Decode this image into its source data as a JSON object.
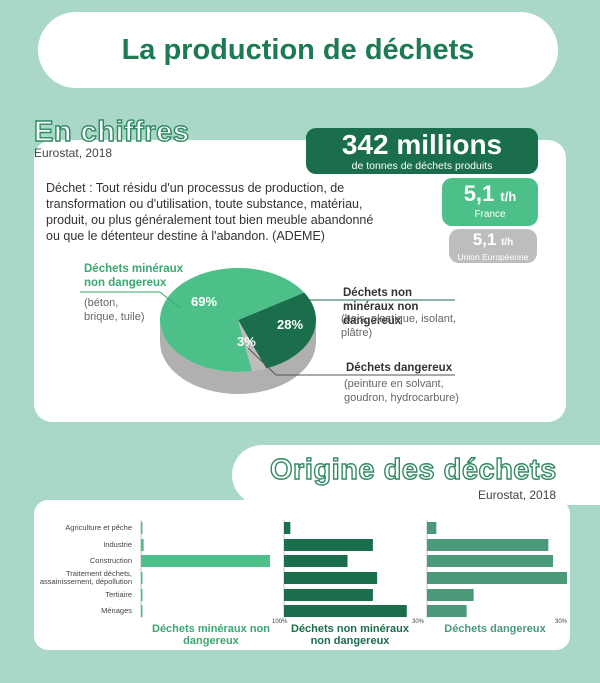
{
  "title": "La production de déchets",
  "section1": {
    "heading": "En chiffres",
    "source": "Eurostat, 2018",
    "total": {
      "value": "342 millions",
      "label": "de tonnes de déchets produits"
    },
    "france": {
      "value": "5,1",
      "unit": "t/h",
      "label": "France"
    },
    "eu": {
      "value": "5,1",
      "unit": "t/h",
      "label": "Union Européenne"
    },
    "definition": "Déchet : Tout résidu d'un processus de production, de transformation ou d'utilisation, toute substance, matériau, produit, ou plus généralement tout bien meuble abandonné ou que le détenteur destine à l'abandon. (ADEME)",
    "pie_labels": {
      "mineral": {
        "name": "Déchets minéraux non dangereux",
        "examples": "(béton, brique, tuile)"
      },
      "nonmineral": {
        "name": "Déchets non minéraux non dangereux",
        "examples": "(bois, plastique, isolant, plâtre)"
      },
      "hazardous": {
        "name": "Déchets dangereux",
        "examples": "(peinture en solvant, goudron, hydrocarbure)"
      }
    }
  },
  "section2": {
    "heading": "Origine des déchets",
    "source": "Eurostat, 2018"
  },
  "colors": {
    "dark": "#1a6e4c",
    "mid": "#4a9a7a",
    "light": "#4cc088",
    "grey": "#bdbdbd"
  },
  "chart_data": [
    {
      "type": "pie",
      "categories": [
        "Déchets minéraux non dangereux",
        "Déchets non minéraux non dangereux",
        "Déchets dangereux"
      ],
      "values": [
        69,
        28,
        3
      ],
      "labels": [
        "69%",
        "28%",
        "3%"
      ]
    },
    {
      "type": "bar",
      "orientation": "horizontal",
      "categories": [
        "Agriculture et pêche",
        "Industrie",
        "Construction",
        "Traitement déchets, assainissement, dépollution",
        "Tertiaire",
        "Ménages"
      ],
      "panels": [
        {
          "name": "Déchets minéraux non dangereux",
          "values": [
            0.5,
            2,
            97,
            1,
            0.5,
            0.5
          ],
          "xlim": [
            0,
            100
          ],
          "max_label": "100%"
        },
        {
          "name": "Déchets non minéraux non dangereux",
          "values": [
            1.5,
            21,
            15,
            22,
            21,
            29
          ],
          "xlim": [
            0,
            30
          ],
          "max_label": "30%"
        },
        {
          "name": "Déchets dangereux",
          "values": [
            2,
            26,
            27,
            30,
            10,
            8.5
          ],
          "xlim": [
            0,
            30
          ],
          "max_label": "30%"
        }
      ]
    }
  ]
}
